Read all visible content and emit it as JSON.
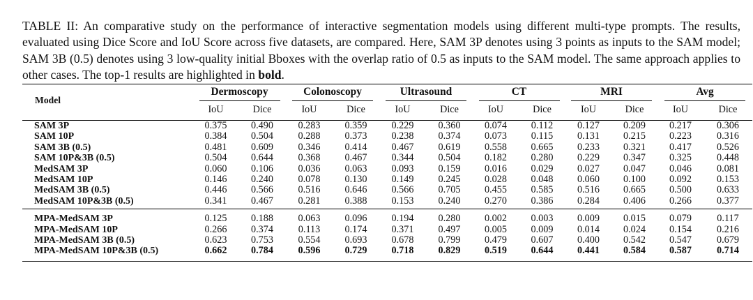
{
  "caption": {
    "text": "TABLE II: An comparative study on the performance of interactive segmentation models using different multi-type prompts. The results, evaluated using Dice Score and IoU Score across five datasets, are compared. Here, SAM 3P denotes using 3 points as inputs to the SAM model; SAM 3B (0.5) denotes using 3 low-quality initial Bboxes with the overlap ratio of 0.5 as inputs to the SAM model. The same approach applies to other cases. The top-1 results are highlighted in ",
    "bold_word": "bold",
    "end": "."
  },
  "table": {
    "model_header": "Model",
    "groups": [
      "Dermoscopy",
      "Colonoscopy",
      "Ultrasound",
      "CT",
      "MRI",
      "Avg"
    ],
    "metrics": [
      "IoU",
      "Dice"
    ],
    "section1": [
      {
        "model": "SAM 3P",
        "values": [
          "0.375",
          "0.490",
          "0.283",
          "0.359",
          "0.229",
          "0.360",
          "0.074",
          "0.112",
          "0.127",
          "0.209",
          "0.217",
          "0.306"
        ]
      },
      {
        "model": "SAM 10P",
        "values": [
          "0.384",
          "0.504",
          "0.288",
          "0.373",
          "0.238",
          "0.374",
          "0.073",
          "0.115",
          "0.131",
          "0.215",
          "0.223",
          "0.316"
        ]
      },
      {
        "model": "SAM 3B (0.5)",
        "values": [
          "0.481",
          "0.609",
          "0.346",
          "0.414",
          "0.467",
          "0.619",
          "0.558",
          "0.665",
          "0.233",
          "0.321",
          "0.417",
          "0.526"
        ]
      },
      {
        "model": "SAM 10P&3B (0.5)",
        "values": [
          "0.504",
          "0.644",
          "0.368",
          "0.467",
          "0.344",
          "0.504",
          "0.182",
          "0.280",
          "0.229",
          "0.347",
          "0.325",
          "0.448"
        ]
      },
      {
        "model": "MedSAM 3P",
        "values": [
          "0.060",
          "0.106",
          "0.036",
          "0.063",
          "0.093",
          "0.159",
          "0.016",
          "0.029",
          "0.027",
          "0.047",
          "0.046",
          "0.081"
        ]
      },
      {
        "model": "MedSAM 10P",
        "values": [
          "0.146",
          "0.240",
          "0.078",
          "0.130",
          "0.149",
          "0.245",
          "0.028",
          "0.048",
          "0.060",
          "0.100",
          "0.092",
          "0.153"
        ]
      },
      {
        "model": "MedSAM 3B (0.5)",
        "values": [
          "0.446",
          "0.566",
          "0.516",
          "0.646",
          "0.566",
          "0.705",
          "0.455",
          "0.585",
          "0.516",
          "0.665",
          "0.500",
          "0.633"
        ]
      },
      {
        "model": "MedSAM 10P&3B (0.5)",
        "values": [
          "0.341",
          "0.467",
          "0.281",
          "0.388",
          "0.153",
          "0.240",
          "0.270",
          "0.386",
          "0.284",
          "0.406",
          "0.266",
          "0.377"
        ]
      }
    ],
    "section2": [
      {
        "model": "MPA-MedSAM 3P",
        "values": [
          "0.125",
          "0.188",
          "0.063",
          "0.096",
          "0.194",
          "0.280",
          "0.002",
          "0.003",
          "0.009",
          "0.015",
          "0.079",
          "0.117"
        ]
      },
      {
        "model": "MPA-MedSAM 10P",
        "values": [
          "0.266",
          "0.374",
          "0.113",
          "0.174",
          "0.371",
          "0.497",
          "0.005",
          "0.009",
          "0.014",
          "0.024",
          "0.154",
          "0.216"
        ]
      },
      {
        "model": "MPA-MedSAM 3B (0.5)",
        "values": [
          "0.623",
          "0.753",
          "0.554",
          "0.693",
          "0.678",
          "0.799",
          "0.479",
          "0.607",
          "0.400",
          "0.542",
          "0.547",
          "0.679"
        ]
      },
      {
        "model": "MPA-MedSAM 10P&3B (0.5)",
        "values": [
          "0.662",
          "0.784",
          "0.596",
          "0.729",
          "0.718",
          "0.829",
          "0.519",
          "0.644",
          "0.441",
          "0.584",
          "0.587",
          "0.714"
        ]
      }
    ]
  }
}
